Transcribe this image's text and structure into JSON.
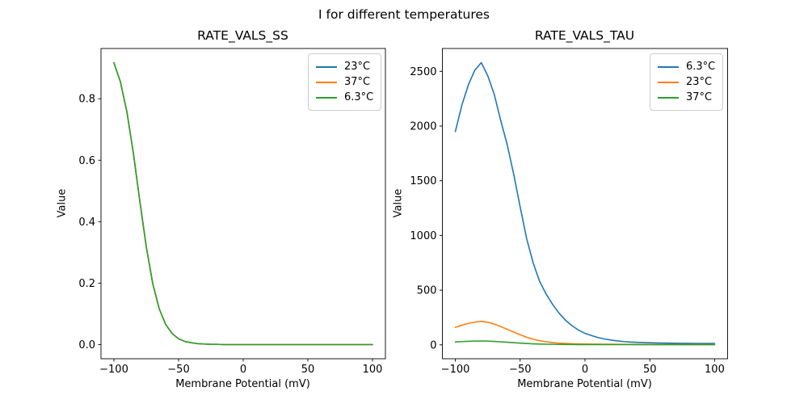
{
  "figure": {
    "suptitle": "I for different temperatures",
    "background_color": "#ffffff",
    "text_color": "#000000",
    "spine_color": "#000000"
  },
  "chart_data": [
    {
      "type": "line",
      "title": "RATE_VALS_SS",
      "xlabel": "Membrane Potential (mV)",
      "ylabel": "Value",
      "grid": false,
      "legend_position": "upper-right",
      "xlim": [
        -110,
        110
      ],
      "ylim": [
        -0.046,
        0.9635
      ],
      "xticks": {
        "values": [
          -100,
          -50,
          0,
          50,
          100
        ],
        "labels": [
          "−100",
          "−50",
          "0",
          "50",
          "100"
        ]
      },
      "yticks": {
        "values": [
          0,
          0.2,
          0.4,
          0.6,
          0.8
        ],
        "labels": [
          "0.0",
          "0.2",
          "0.4",
          "0.6",
          "0.8"
        ]
      },
      "x": [
        -100,
        -95,
        -90,
        -85,
        -80,
        -75,
        -70,
        -65,
        -60,
        -55,
        -50,
        -45,
        -40,
        -35,
        -30,
        -25,
        -20,
        -15,
        -10,
        -5,
        0,
        5,
        10,
        15,
        20,
        25,
        30,
        35,
        40,
        45,
        50,
        55,
        60,
        65,
        70,
        75,
        80,
        85,
        90,
        95,
        100
      ],
      "series": [
        {
          "name": "23°C",
          "color": "#1f77b4",
          "values": [
            0.917,
            0.855,
            0.758,
            0.624,
            0.468,
            0.319,
            0.199,
            0.117,
            0.066,
            0.036,
            0.019,
            0.01,
            0.006,
            0.003,
            0.002,
            0.001,
            0.001,
            0,
            0,
            0,
            0,
            0,
            0,
            0,
            0,
            0,
            0,
            0,
            0,
            0,
            0,
            0,
            0,
            0,
            0,
            0,
            0,
            0,
            0,
            0,
            0
          ]
        },
        {
          "name": "37°C",
          "color": "#ff7f0e",
          "values": [
            0.917,
            0.855,
            0.758,
            0.624,
            0.468,
            0.319,
            0.199,
            0.117,
            0.066,
            0.036,
            0.019,
            0.01,
            0.006,
            0.003,
            0.002,
            0.001,
            0.001,
            0,
            0,
            0,
            0,
            0,
            0,
            0,
            0,
            0,
            0,
            0,
            0,
            0,
            0,
            0,
            0,
            0,
            0,
            0,
            0,
            0,
            0,
            0,
            0
          ]
        },
        {
          "name": "6.3°C",
          "color": "#2ca02c",
          "values": [
            0.917,
            0.855,
            0.758,
            0.624,
            0.468,
            0.319,
            0.199,
            0.117,
            0.066,
            0.036,
            0.019,
            0.01,
            0.006,
            0.003,
            0.002,
            0.001,
            0.001,
            0,
            0,
            0,
            0,
            0,
            0,
            0,
            0,
            0,
            0,
            0,
            0,
            0,
            0,
            0,
            0,
            0,
            0,
            0,
            0,
            0,
            0,
            0,
            0
          ]
        }
      ]
    },
    {
      "type": "line",
      "title": "RATE_VALS_TAU",
      "xlabel": "Membrane Potential (mV)",
      "ylabel": "Value",
      "grid": false,
      "legend_position": "upper-right",
      "xlim": [
        -110,
        110
      ],
      "ylim": [
        -127,
        2709
      ],
      "xticks": {
        "values": [
          -100,
          -50,
          0,
          50,
          100
        ],
        "labels": [
          "−100",
          "−50",
          "0",
          "50",
          "100"
        ]
      },
      "yticks": {
        "values": [
          0,
          500,
          1000,
          1500,
          2000,
          2500
        ],
        "labels": [
          "0",
          "500",
          "1000",
          "1500",
          "2000",
          "2500"
        ]
      },
      "x": [
        -100,
        -95,
        -90,
        -85,
        -80,
        -75,
        -70,
        -65,
        -60,
        -55,
        -50,
        -45,
        -40,
        -35,
        -30,
        -25,
        -20,
        -15,
        -10,
        -5,
        0,
        5,
        10,
        15,
        20,
        25,
        30,
        35,
        40,
        45,
        50,
        55,
        60,
        65,
        70,
        75,
        80,
        85,
        90,
        95,
        100
      ],
      "series": [
        {
          "name": "6.3°C",
          "color": "#1f77b4",
          "values": [
            1950,
            2190,
            2375,
            2510,
            2580,
            2460,
            2290,
            2050,
            1830,
            1560,
            1260,
            970,
            750,
            580,
            465,
            370,
            290,
            225,
            175,
            135,
            105,
            85,
            67,
            54,
            44,
            36,
            30,
            26,
            23,
            21,
            19,
            17.5,
            16.5,
            15.5,
            14.8,
            14.2,
            13.8,
            13.4,
            13.1,
            12.9,
            12.7
          ]
        },
        {
          "name": "23°C",
          "color": "#ff7f0e",
          "values": [
            160,
            180,
            196,
            208,
            215,
            207,
            190,
            167,
            143,
            118,
            93,
            70,
            52,
            38,
            28,
            21,
            16,
            12.5,
            10,
            8.5,
            7.5,
            6.8,
            6.2,
            5.8,
            5.4,
            5.1,
            4.9,
            4.7,
            4.5,
            4.4,
            4.3,
            4.2,
            4.1,
            4.05,
            4,
            3.95,
            3.9,
            3.85,
            3.8,
            3.78,
            3.75
          ]
        },
        {
          "name": "37°C",
          "color": "#2ca02c",
          "values": [
            27,
            30,
            32.5,
            34.5,
            35.5,
            34,
            31.5,
            28,
            24,
            20,
            16,
            12.5,
            9.5,
            7.5,
            6,
            5,
            4.2,
            3.7,
            3.3,
            3,
            2.8,
            2.6,
            2.5,
            2.4,
            2.3,
            2.25,
            2.2,
            2.15,
            2.1,
            2.05,
            2,
            2,
            1.95,
            1.95,
            1.9,
            1.9,
            1.85,
            1.85,
            1.8,
            1.8,
            1.8
          ]
        }
      ]
    }
  ]
}
